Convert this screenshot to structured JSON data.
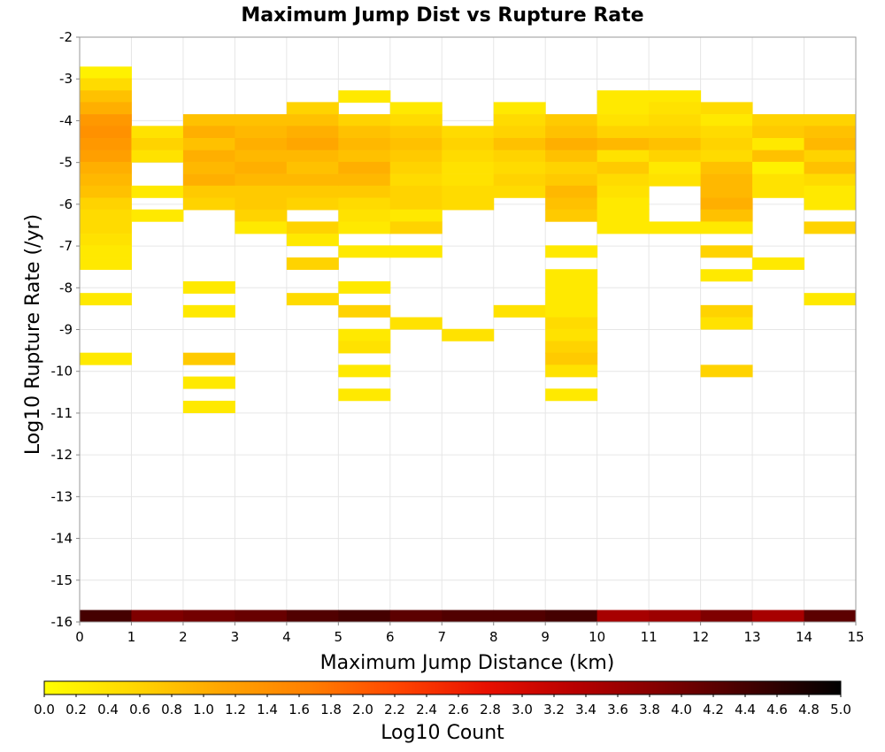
{
  "chart_data": {
    "type": "heatmap",
    "title": "Maximum Jump Dist vs Rupture Rate",
    "xlabel": "Maximum Jump Distance (km)",
    "ylabel": "Log10 Rupture Rate (/yr)",
    "colorbar_label": "Log10 Count",
    "xlim": [
      0,
      15
    ],
    "ylim": [
      -16,
      -2
    ],
    "x_bin_width": 1,
    "y_bin_width": 0.2857,
    "x_ticks": [
      "0",
      "1",
      "2",
      "3",
      "4",
      "5",
      "6",
      "7",
      "8",
      "9",
      "10",
      "11",
      "12",
      "13",
      "14",
      "15"
    ],
    "y_ticks": [
      "-2",
      "-3",
      "-4",
      "-5",
      "-6",
      "-7",
      "-8",
      "-9",
      "-10",
      "-11",
      "-12",
      "-13",
      "-14",
      "-15",
      "-16"
    ],
    "grid": true,
    "colorbar": {
      "min": 0,
      "max": 5,
      "ticks": [
        "0.0",
        "0.2",
        "0.4",
        "0.6",
        "0.8",
        "1.0",
        "1.2",
        "1.4",
        "1.6",
        "1.8",
        "2.0",
        "2.2",
        "2.4",
        "2.6",
        "2.8",
        "3.0",
        "3.2",
        "3.4",
        "3.6",
        "3.8",
        "4.0",
        "4.2",
        "4.4",
        "4.6",
        "4.8",
        "5.0"
      ],
      "colors": [
        "#ffff00",
        "#ffd700",
        "#ffa500",
        "#ff7f00",
        "#ff4500",
        "#e81000",
        "#b80000",
        "#800000",
        "#400000",
        "#000000"
      ]
    },
    "cells_columns": [
      "x_bin_start",
      "log10_rate_bin_bottom",
      "log10_count"
    ],
    "cells": [
      [
        0,
        -2.99,
        0.2
      ],
      [
        0,
        -3.27,
        0.5
      ],
      [
        0,
        -3.56,
        0.8
      ],
      [
        0,
        -3.84,
        1.0
      ],
      [
        0,
        -4.13,
        1.3
      ],
      [
        0,
        -4.41,
        1.4
      ],
      [
        0,
        -4.7,
        1.3
      ],
      [
        0,
        -4.99,
        1.2
      ],
      [
        0,
        -5.27,
        1.0
      ],
      [
        0,
        -5.56,
        0.9
      ],
      [
        0,
        -5.84,
        0.8
      ],
      [
        0,
        -6.13,
        0.6
      ],
      [
        0,
        -6.41,
        0.5
      ],
      [
        0,
        -6.7,
        0.5
      ],
      [
        0,
        -6.99,
        0.4
      ],
      [
        0,
        -7.27,
        0.3
      ],
      [
        0,
        -7.56,
        0.3
      ],
      [
        0,
        -8.41,
        0.3
      ],
      [
        0,
        -9.84,
        0.3
      ],
      [
        1,
        -4.41,
        0.4
      ],
      [
        1,
        -4.7,
        0.6
      ],
      [
        1,
        -4.99,
        0.4
      ],
      [
        1,
        -5.84,
        0.3
      ],
      [
        1,
        -6.41,
        0.3
      ],
      [
        2,
        -4.13,
        0.8
      ],
      [
        2,
        -4.41,
        1.0
      ],
      [
        2,
        -4.7,
        0.8
      ],
      [
        2,
        -4.99,
        1.0
      ],
      [
        2,
        -5.27,
        0.9
      ],
      [
        2,
        -5.56,
        1.0
      ],
      [
        2,
        -5.84,
        0.7
      ],
      [
        2,
        -6.13,
        0.6
      ],
      [
        2,
        -8.13,
        0.3
      ],
      [
        2,
        -8.7,
        0.3
      ],
      [
        2,
        -9.84,
        0.7
      ],
      [
        2,
        -10.41,
        0.3
      ],
      [
        2,
        -10.99,
        0.3
      ],
      [
        3,
        -4.13,
        0.8
      ],
      [
        3,
        -4.41,
        0.9
      ],
      [
        3,
        -4.7,
        1.0
      ],
      [
        3,
        -4.99,
        0.9
      ],
      [
        3,
        -5.27,
        1.0
      ],
      [
        3,
        -5.56,
        0.9
      ],
      [
        3,
        -5.84,
        0.7
      ],
      [
        3,
        -6.13,
        0.7
      ],
      [
        3,
        -6.41,
        0.6
      ],
      [
        3,
        -6.7,
        0.3
      ],
      [
        4,
        -3.84,
        0.6
      ],
      [
        4,
        -4.13,
        0.8
      ],
      [
        4,
        -4.41,
        1.0
      ],
      [
        4,
        -4.7,
        1.1
      ],
      [
        4,
        -4.99,
        0.9
      ],
      [
        4,
        -5.27,
        0.8
      ],
      [
        4,
        -5.56,
        0.9
      ],
      [
        4,
        -5.84,
        0.7
      ],
      [
        4,
        -6.13,
        0.6
      ],
      [
        4,
        -6.7,
        0.6
      ],
      [
        4,
        -6.99,
        0.3
      ],
      [
        4,
        -7.56,
        0.6
      ],
      [
        4,
        -8.41,
        0.5
      ],
      [
        5,
        -3.56,
        0.3
      ],
      [
        5,
        -4.13,
        0.6
      ],
      [
        5,
        -4.41,
        0.8
      ],
      [
        5,
        -4.7,
        0.9
      ],
      [
        5,
        -4.99,
        0.8
      ],
      [
        5,
        -5.27,
        1.0
      ],
      [
        5,
        -5.56,
        0.9
      ],
      [
        5,
        -5.84,
        0.7
      ],
      [
        5,
        -6.13,
        0.5
      ],
      [
        5,
        -6.41,
        0.4
      ],
      [
        5,
        -6.7,
        0.3
      ],
      [
        5,
        -7.27,
        0.3
      ],
      [
        5,
        -8.13,
        0.3
      ],
      [
        5,
        -8.7,
        0.6
      ],
      [
        5,
        -9.27,
        0.3
      ],
      [
        5,
        -9.56,
        0.4
      ],
      [
        5,
        -10.13,
        0.3
      ],
      [
        5,
        -10.7,
        0.3
      ],
      [
        6,
        -3.84,
        0.3
      ],
      [
        6,
        -4.13,
        0.5
      ],
      [
        6,
        -4.41,
        0.7
      ],
      [
        6,
        -4.7,
        0.8
      ],
      [
        6,
        -4.99,
        0.7
      ],
      [
        6,
        -5.27,
        0.6
      ],
      [
        6,
        -5.56,
        0.5
      ],
      [
        6,
        -5.84,
        0.6
      ],
      [
        6,
        -6.13,
        0.6
      ],
      [
        6,
        -6.41,
        0.3
      ],
      [
        6,
        -6.7,
        0.6
      ],
      [
        6,
        -7.27,
        0.3
      ],
      [
        6,
        -8.99,
        0.4
      ],
      [
        7,
        -4.41,
        0.5
      ],
      [
        7,
        -4.7,
        0.6
      ],
      [
        7,
        -4.99,
        0.5
      ],
      [
        7,
        -5.27,
        0.4
      ],
      [
        7,
        -5.56,
        0.4
      ],
      [
        7,
        -5.84,
        0.5
      ],
      [
        7,
        -6.13,
        0.5
      ],
      [
        7,
        -9.27,
        0.4
      ],
      [
        8,
        -3.84,
        0.3
      ],
      [
        8,
        -4.13,
        0.5
      ],
      [
        8,
        -4.41,
        0.6
      ],
      [
        8,
        -4.7,
        0.8
      ],
      [
        8,
        -4.99,
        0.6
      ],
      [
        8,
        -5.27,
        0.5
      ],
      [
        8,
        -5.56,
        0.6
      ],
      [
        8,
        -5.84,
        0.5
      ],
      [
        8,
        -8.7,
        0.4
      ],
      [
        9,
        -4.13,
        0.7
      ],
      [
        9,
        -4.41,
        0.8
      ],
      [
        9,
        -4.7,
        1.0
      ],
      [
        9,
        -4.99,
        0.8
      ],
      [
        9,
        -5.27,
        0.6
      ],
      [
        9,
        -5.56,
        0.7
      ],
      [
        9,
        -5.84,
        0.9
      ],
      [
        9,
        -6.13,
        0.8
      ],
      [
        9,
        -6.41,
        0.7
      ],
      [
        9,
        -7.27,
        0.3
      ],
      [
        9,
        -7.84,
        0.3
      ],
      [
        9,
        -8.13,
        0.3
      ],
      [
        9,
        -8.41,
        0.3
      ],
      [
        9,
        -8.7,
        0.3
      ],
      [
        9,
        -8.99,
        0.5
      ],
      [
        9,
        -9.27,
        0.4
      ],
      [
        9,
        -9.56,
        0.6
      ],
      [
        9,
        -9.84,
        0.7
      ],
      [
        9,
        -10.13,
        0.4
      ],
      [
        9,
        -10.7,
        0.3
      ],
      [
        10,
        -3.56,
        0.3
      ],
      [
        10,
        -3.84,
        0.3
      ],
      [
        10,
        -4.13,
        0.4
      ],
      [
        10,
        -4.41,
        0.6
      ],
      [
        10,
        -4.7,
        0.9
      ],
      [
        10,
        -4.99,
        0.4
      ],
      [
        10,
        -5.27,
        0.7
      ],
      [
        10,
        -5.56,
        0.5
      ],
      [
        10,
        -5.84,
        0.4
      ],
      [
        10,
        -6.13,
        0.3
      ],
      [
        10,
        -6.41,
        0.3
      ],
      [
        10,
        -6.7,
        0.3
      ],
      [
        11,
        -3.56,
        0.3
      ],
      [
        11,
        -3.84,
        0.4
      ],
      [
        11,
        -4.13,
        0.5
      ],
      [
        11,
        -4.41,
        0.6
      ],
      [
        11,
        -4.7,
        0.8
      ],
      [
        11,
        -4.99,
        0.6
      ],
      [
        11,
        -5.27,
        0.3
      ],
      [
        11,
        -5.56,
        0.4
      ],
      [
        11,
        -6.7,
        0.3
      ],
      [
        12,
        -3.84,
        0.5
      ],
      [
        12,
        -4.13,
        0.3
      ],
      [
        12,
        -4.41,
        0.5
      ],
      [
        12,
        -4.7,
        0.6
      ],
      [
        12,
        -4.99,
        0.5
      ],
      [
        12,
        -5.27,
        0.8
      ],
      [
        12,
        -5.56,
        0.9
      ],
      [
        12,
        -5.84,
        0.9
      ],
      [
        12,
        -6.13,
        1.0
      ],
      [
        12,
        -6.41,
        0.8
      ],
      [
        12,
        -6.7,
        0.3
      ],
      [
        12,
        -7.27,
        0.6
      ],
      [
        12,
        -7.84,
        0.3
      ],
      [
        12,
        -8.7,
        0.6
      ],
      [
        12,
        -8.99,
        0.4
      ],
      [
        12,
        -10.13,
        0.6
      ],
      [
        13,
        -4.13,
        0.6
      ],
      [
        13,
        -4.41,
        0.7
      ],
      [
        13,
        -4.7,
        0.3
      ],
      [
        13,
        -4.99,
        0.8
      ],
      [
        13,
        -5.27,
        0.2
      ],
      [
        13,
        -5.56,
        0.4
      ],
      [
        13,
        -5.84,
        0.4
      ],
      [
        13,
        -7.56,
        0.3
      ],
      [
        14,
        -4.13,
        0.6
      ],
      [
        14,
        -4.41,
        0.8
      ],
      [
        14,
        -4.7,
        0.9
      ],
      [
        14,
        -4.99,
        0.6
      ],
      [
        14,
        -5.27,
        0.8
      ],
      [
        14,
        -5.56,
        0.5
      ],
      [
        14,
        -5.84,
        0.3
      ],
      [
        14,
        -6.13,
        0.3
      ],
      [
        14,
        -6.7,
        0.6
      ],
      [
        14,
        -8.41,
        0.3
      ],
      [
        0,
        -16,
        4.4
      ],
      [
        1,
        -16,
        3.9
      ],
      [
        2,
        -16,
        4.0
      ],
      [
        3,
        -16,
        4.1
      ],
      [
        4,
        -16,
        4.3
      ],
      [
        5,
        -16,
        4.4
      ],
      [
        6,
        -16,
        4.2
      ],
      [
        7,
        -16,
        4.3
      ],
      [
        8,
        -16,
        4.3
      ],
      [
        9,
        -16,
        4.4
      ],
      [
        10,
        -16,
        3.5
      ],
      [
        11,
        -16,
        3.6
      ],
      [
        12,
        -16,
        3.9
      ],
      [
        13,
        -16,
        3.5
      ],
      [
        14,
        -16,
        4.2
      ]
    ]
  }
}
